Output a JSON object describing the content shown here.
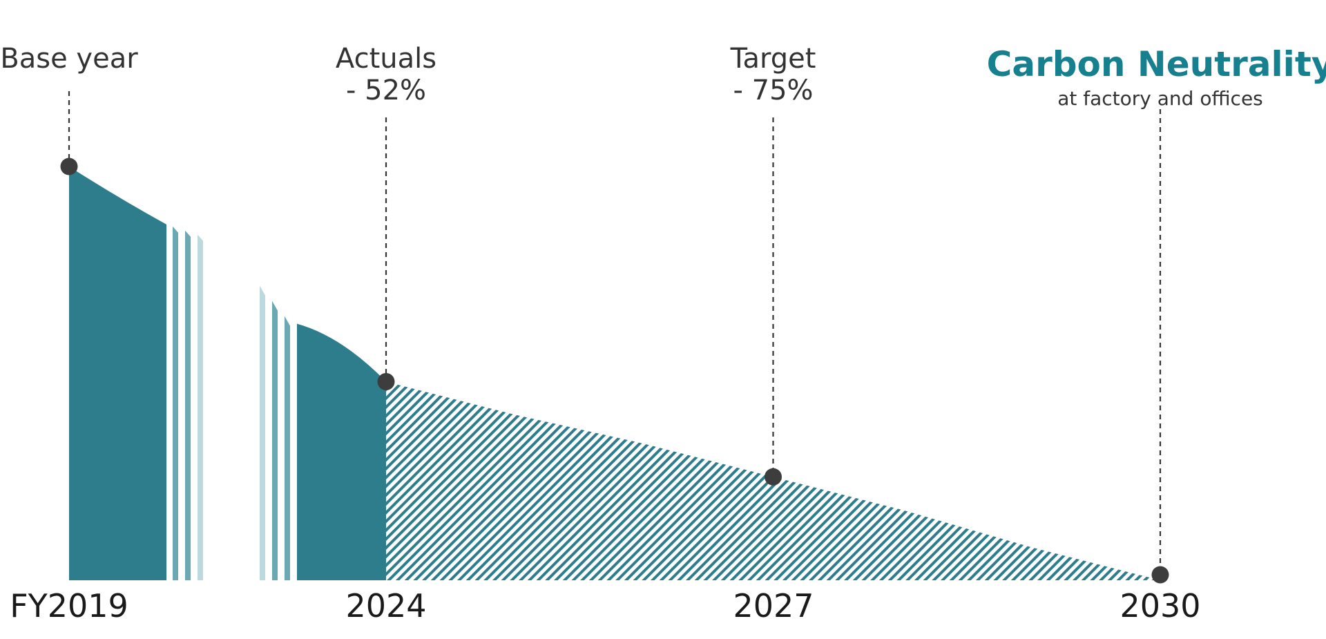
{
  "colors": {
    "primary": "#2e7d8c",
    "mid": "#6aa9b4",
    "light": "#bcd9de",
    "marker": "#3d3d3d",
    "title": "#16808f"
  },
  "chart_data": {
    "type": "area",
    "title": "Carbon Neutrality",
    "subtitle": "at factory and offices",
    "x_ticks": [
      "FY2019",
      "2024",
      "2027",
      "2030"
    ],
    "x_tick_years": [
      2019,
      2024,
      2027,
      2030
    ],
    "axis_break": "between FY2019 and 2024",
    "ylim": [
      0,
      100
    ],
    "actual_series": [
      {
        "year": 2019,
        "value": 100
      },
      {
        "year": 2019.5,
        "value": 86
      },
      {
        "year": 2023,
        "value": 62
      },
      {
        "year": 2024,
        "value": 48
      }
    ],
    "target_series": [
      {
        "year": 2024,
        "value": 48
      },
      {
        "year": 2025,
        "value": 40
      },
      {
        "year": 2026,
        "value": 33
      },
      {
        "year": 2027,
        "value": 25
      },
      {
        "year": 2028,
        "value": 17
      },
      {
        "year": 2029,
        "value": 8
      },
      {
        "year": 2030,
        "value": 0
      }
    ],
    "milestones": [
      {
        "year": 2019,
        "value": 100,
        "label": "Base year",
        "sub": ""
      },
      {
        "year": 2024,
        "value": 48,
        "label": "Actuals",
        "sub": "- 52%"
      },
      {
        "year": 2027,
        "value": 25,
        "label": "Target",
        "sub": "- 75%"
      },
      {
        "year": 2030,
        "value": 0,
        "label": "",
        "sub": ""
      }
    ]
  }
}
